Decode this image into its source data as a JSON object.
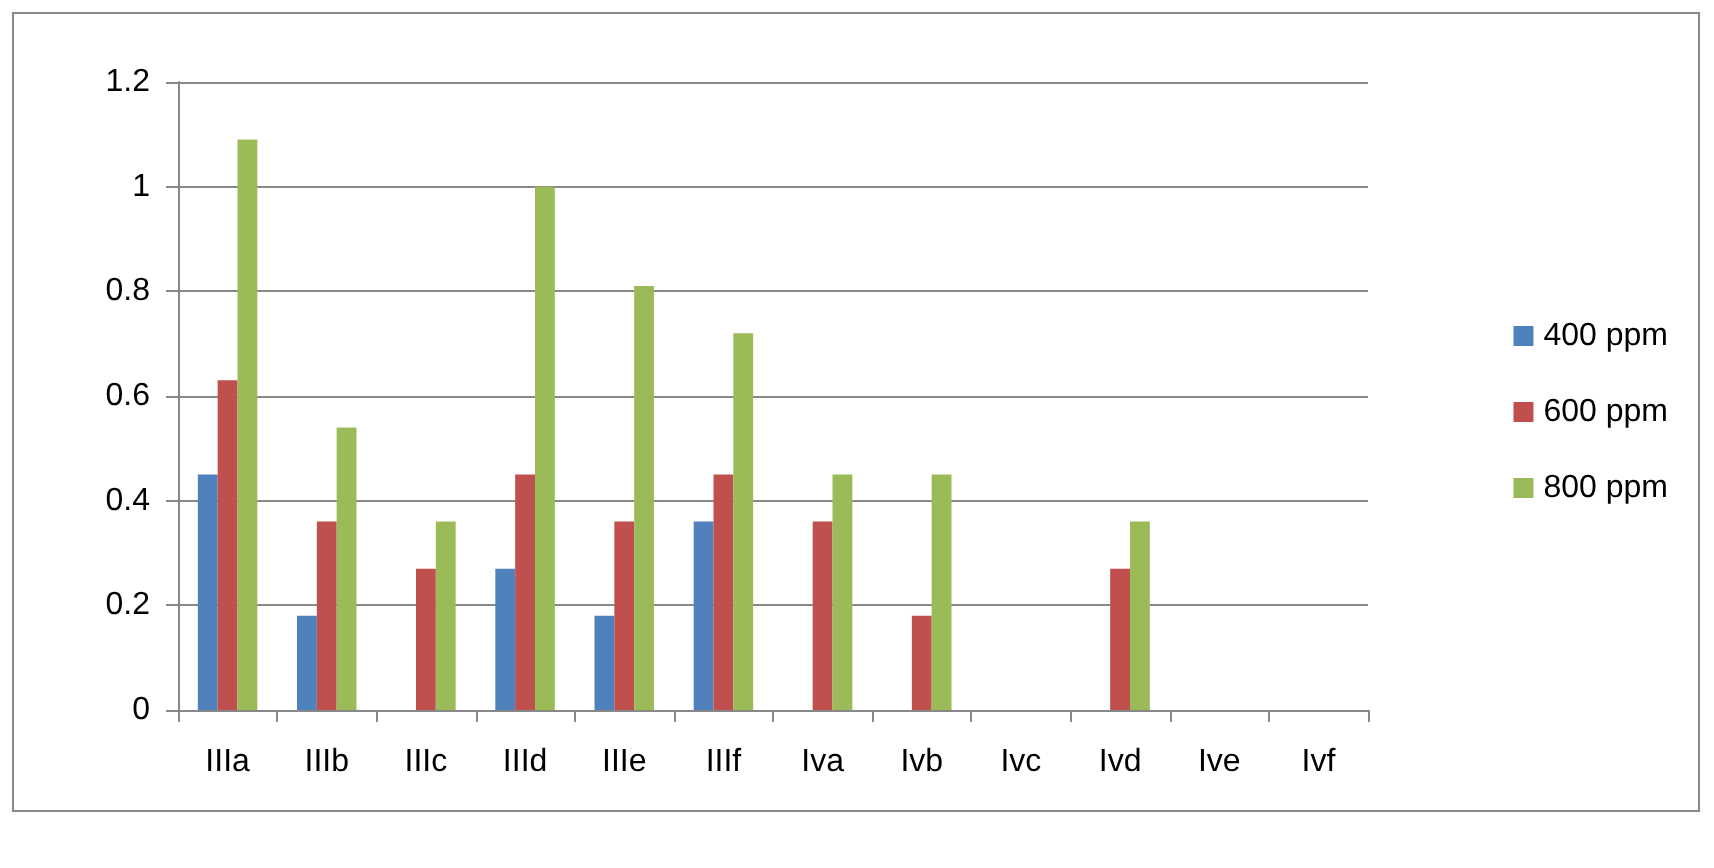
{
  "chart_data": {
    "type": "bar",
    "categories": [
      "IIIa",
      "IIIb",
      "IIIc",
      "IIId",
      "IIIe",
      "IIIf",
      "Iva",
      "Ivb",
      "Ivc",
      "Ivd",
      "Ive",
      "Ivf"
    ],
    "series": [
      {
        "name": "400 ppm",
        "color": "#4f81bd",
        "values": [
          0.45,
          0.18,
          0,
          0.27,
          0.18,
          0.36,
          0,
          0,
          0,
          0,
          0,
          0
        ]
      },
      {
        "name": "600 ppm",
        "color": "#c0504d",
        "values": [
          0.63,
          0.36,
          0.27,
          0.45,
          0.36,
          0.45,
          0.36,
          0.18,
          0,
          0.27,
          0,
          0
        ]
      },
      {
        "name": "800 ppm",
        "color": "#9bbb59",
        "values": [
          1.09,
          0.54,
          0.36,
          1.0,
          0.81,
          0.72,
          0.45,
          0.45,
          0,
          0.36,
          0,
          0
        ]
      }
    ],
    "ylim": [
      0,
      1.2
    ],
    "yticks": [
      0,
      0.2,
      0.4,
      0.6,
      0.8,
      1,
      1.2
    ],
    "grid": "y",
    "legend": "right"
  }
}
